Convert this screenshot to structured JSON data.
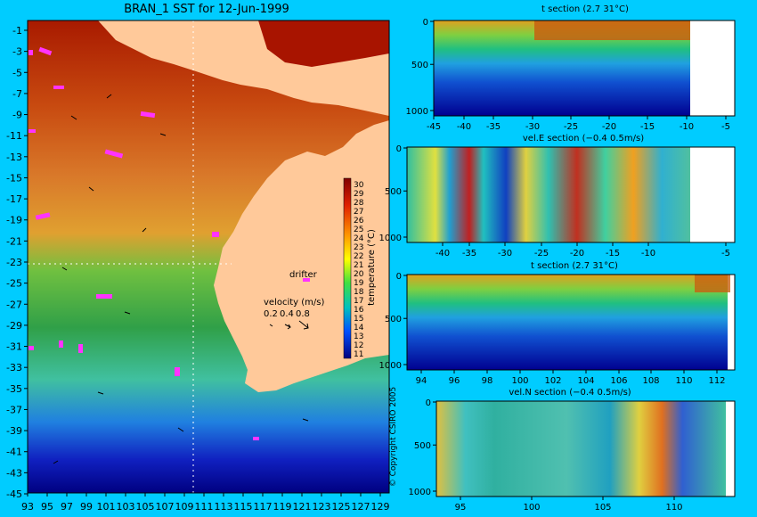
{
  "map": {
    "title": "BRAN_1 SST for 12-Jun-1999",
    "lat_labels": [
      "-1",
      "-3",
      "-5",
      "-7",
      "-9",
      "-11",
      "-13",
      "-15",
      "-17",
      "-19",
      "-21",
      "-23",
      "-25",
      "-27",
      "-29",
      "-31",
      "-33",
      "-35",
      "-37",
      "-39",
      "-41",
      "-43",
      "-45"
    ],
    "lon_labels": [
      "93",
      "95",
      "97",
      "99",
      "101",
      "103",
      "105",
      "107",
      "109",
      "111",
      "113",
      "115",
      "117",
      "119",
      "121",
      "123",
      "125",
      "127",
      "129"
    ],
    "colorbar_labels": [
      "30",
      "29",
      "28",
      "27",
      "26",
      "25",
      "24",
      "23",
      "22",
      "21",
      "20",
      "19",
      "18",
      "17",
      "16",
      "15",
      "14",
      "13",
      "12",
      "11"
    ],
    "colorbar_title": "temperature (°C)",
    "drifter_label": "drifter",
    "velocity_label": "velocity (m/s)",
    "velocity_scale": [
      "0.2",
      "0.4",
      "0.8"
    ],
    "copyright": "© Copyright CSIRO 2005"
  },
  "sections": [
    {
      "title": "t section (2.7      31°C)",
      "y_ticks": [
        "0",
        "500",
        "1000"
      ],
      "x_ticks": [
        "-45",
        "-40",
        "-35",
        "-30",
        "-25",
        "-20",
        "-15",
        "-10",
        "-5"
      ]
    },
    {
      "title": "vel.E section (−0.4      0.5m/s)",
      "y_ticks": [
        "0",
        "500",
        "1000"
      ],
      "x_ticks": [
        "-40",
        "-35",
        "-30",
        "-25",
        "-20",
        "-15",
        "-10",
        "-5"
      ]
    },
    {
      "title": "t section (2.7      31°C)",
      "y_ticks": [
        "0",
        "500",
        "1000"
      ],
      "x_ticks": [
        "94",
        "96",
        "98",
        "100",
        "102",
        "104",
        "106",
        "108",
        "110",
        "112"
      ]
    },
    {
      "title": "vel.N section (−0.4      0.5m/s)",
      "y_ticks": [
        "0",
        "500",
        "1000"
      ],
      "x_ticks": [
        "95",
        "100",
        "105",
        "110"
      ]
    }
  ],
  "colors": {
    "background": "#00ccff",
    "land": "#ffc99a",
    "drifter": "#ff33ff"
  }
}
